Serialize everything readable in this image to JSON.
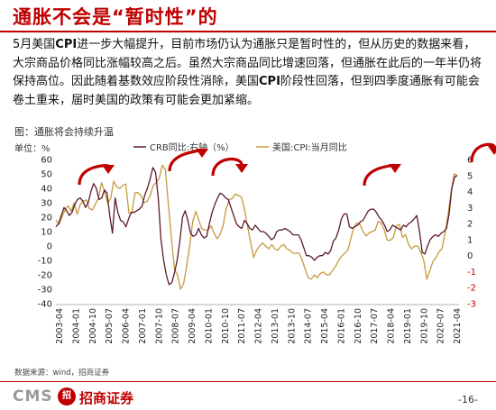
{
  "header": {
    "title": "通胀不会是“暂时性”的"
  },
  "body": {
    "paragraph_prefix": "5月美国",
    "paragraph_bold1": "CPI",
    "paragraph_mid": "进一步大幅提升，目前市场仍认为通胀只是暂时性的，但从历史的数据来看，大宗商品价格同比涨幅较高之后。虽然大宗商品同比增速回落，但通胀在此后的一年半仍将保持高位。因此随着基数效应阶段性消除，美国",
    "paragraph_bold2": "CPI",
    "paragraph_suffix": "阶段性回落，但到四季度通胀有可能会卷土重来，届时美国的政策有可能会更加紧缩。"
  },
  "figure": {
    "caption": "图：通胀将会持续升温",
    "source": "数据来源：wind，招商证券"
  },
  "chart_data": {
    "type": "line",
    "unit_label": "单位：%",
    "legend_position": "top",
    "x_tick_labels": [
      "2003-04",
      "2004-01",
      "2004-10",
      "2005-07",
      "2006-04",
      "2007-01",
      "2007-10",
      "2008-07",
      "2009-04",
      "2010-01",
      "2010-10",
      "2011-07",
      "2012-04",
      "2013-01",
      "2013-10",
      "2014-07",
      "2015-04",
      "2016-01",
      "2016-10",
      "2017-07",
      "2018-04",
      "2019-01",
      "2019-10",
      "2020-07",
      "2021-04"
    ],
    "ylim_left": [
      -40,
      60
    ],
    "yticks_left": [
      "60",
      "50",
      "40",
      "30",
      "20",
      "10",
      "0",
      "-10",
      "-20",
      "-30",
      "-40"
    ],
    "ylim_right": [
      -3,
      6
    ],
    "yticks_right": [
      "6",
      "5",
      "4",
      "3",
      "2",
      "1",
      "0",
      "-1",
      "-2",
      "-3"
    ],
    "series": [
      {
        "name": "CRB同比:右轴（%）",
        "axis": "right",
        "color": "#5b1a2c",
        "values": [
          1.8,
          2.0,
          2.5,
          3.0,
          2.8,
          2.5,
          2.7,
          3.2,
          3.5,
          3.6,
          3.4,
          3.0,
          3.3,
          4.0,
          4.5,
          4.2,
          3.5,
          3.6,
          4.1,
          3.9,
          2.5,
          1.4,
          3.6,
          2.7,
          2.2,
          2.1,
          1.8,
          2.3,
          2.7,
          2.7,
          2.8,
          2.9,
          3.1,
          3.8,
          4.2,
          4.8,
          5.5,
          5.2,
          3.6,
          1.0,
          -0.3,
          -1.2,
          -1.8,
          -1.7,
          -1.1,
          -0.3,
          0.9,
          2.4,
          2.8,
          2.2,
          1.4,
          1.2,
          1.3,
          1.7,
          1.3,
          1.1,
          1.2,
          2.0,
          2.7,
          3.2,
          3.6,
          3.9,
          3.8,
          3.6,
          3.5,
          3.0,
          2.5,
          2.0,
          1.8,
          1.7,
          2.2,
          2.0,
          1.7,
          1.6,
          1.9,
          1.7,
          1.5,
          1.5,
          1.4,
          1.2,
          1.0,
          1.1,
          1.5,
          1.6,
          1.6,
          1.7,
          1.6,
          1.5,
          1.3,
          1.3,
          1.3,
          1.0,
          0.5,
          0.0,
          0.0,
          -0.1,
          -0.3,
          -0.1,
          0.0,
          0.0,
          0.2,
          0.1,
          0.3,
          0.9,
          1.1,
          1.6,
          2.3,
          2.6,
          2.6,
          1.8,
          1.7,
          1.8,
          1.9,
          2.1,
          2.2,
          2.5,
          2.8,
          2.9,
          2.9,
          2.7,
          2.4,
          2.2,
          1.9,
          1.5,
          1.6,
          1.9,
          1.8,
          1.7,
          1.6,
          1.9,
          1.8,
          2.0,
          2.1,
          2.3,
          2.5,
          1.5,
          0.2,
          0.1,
          0.6,
          1.0,
          1.2,
          1.3,
          1.2,
          1.4,
          1.5,
          1.7,
          2.6,
          4.2,
          4.9,
          5.0
        ]
      },
      {
        "name": "美国:CPI:当月同比",
        "axis": "left",
        "color": "#c49a3c",
        "values": [
          18,
          15,
          20,
          25,
          28,
          24,
          30,
          22,
          29,
          31,
          32,
          26,
          25,
          29,
          33,
          44,
          38,
          30,
          33,
          45,
          41,
          40,
          42,
          43,
          23,
          23,
          37,
          37,
          35,
          30,
          31,
          35,
          42,
          44,
          47,
          56,
          53,
          29,
          5,
          -16,
          -20,
          -30,
          -26,
          -14,
          0,
          17,
          24,
          18,
          12,
          11,
          11,
          14,
          9,
          5,
          8,
          14,
          26,
          32,
          33,
          36,
          35,
          34,
          26,
          14,
          3,
          -8,
          -3,
          0,
          2,
          0,
          -2,
          1,
          -2,
          -3,
          0,
          1,
          -2,
          -3,
          -5,
          -5,
          -5,
          -10,
          -16,
          -22,
          -23,
          -20,
          -22,
          -19,
          -18,
          -20,
          -20,
          -17,
          -14,
          -10,
          -7,
          -5,
          -3,
          5,
          13,
          16,
          15,
          10,
          7,
          9,
          10,
          11,
          17,
          16,
          11,
          4,
          4,
          6,
          14,
          15,
          6,
          8,
          1,
          -2,
          0,
          0,
          -4,
          -10,
          -23,
          -17,
          -11,
          -8,
          -4,
          -2,
          9,
          22,
          38,
          50,
          49
        ]
      }
    ]
  },
  "footer": {
    "logo_cms": "CMS",
    "logo_badge": "招",
    "logo_name": "招商证券",
    "page_number": "-16-"
  },
  "colors": {
    "brand_red": "#c00000",
    "arrow_red": "#c00000",
    "crb_line": "#5b1a2c",
    "cpi_line": "#c49a3c"
  }
}
